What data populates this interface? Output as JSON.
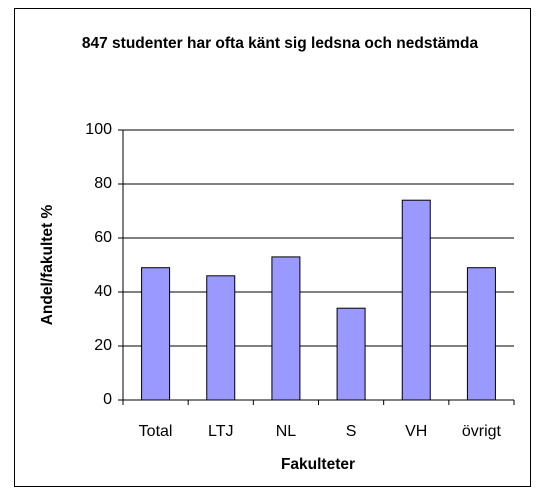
{
  "chart_data": {
    "type": "bar",
    "title": "847 studenter har ofta känt sig ledsna och nedstämda",
    "x_label": "Fakulteter",
    "y_label": "Andel/fakultet %",
    "categories": [
      "Total",
      "LTJ",
      "NL",
      "S",
      "VH",
      "övrigt"
    ],
    "values": [
      49,
      46,
      53,
      34,
      74,
      49
    ],
    "color": "#9999ff",
    "ylim": [
      0,
      100
    ],
    "yticks": [
      0,
      20,
      40,
      60,
      80,
      100
    ],
    "grid": true
  }
}
